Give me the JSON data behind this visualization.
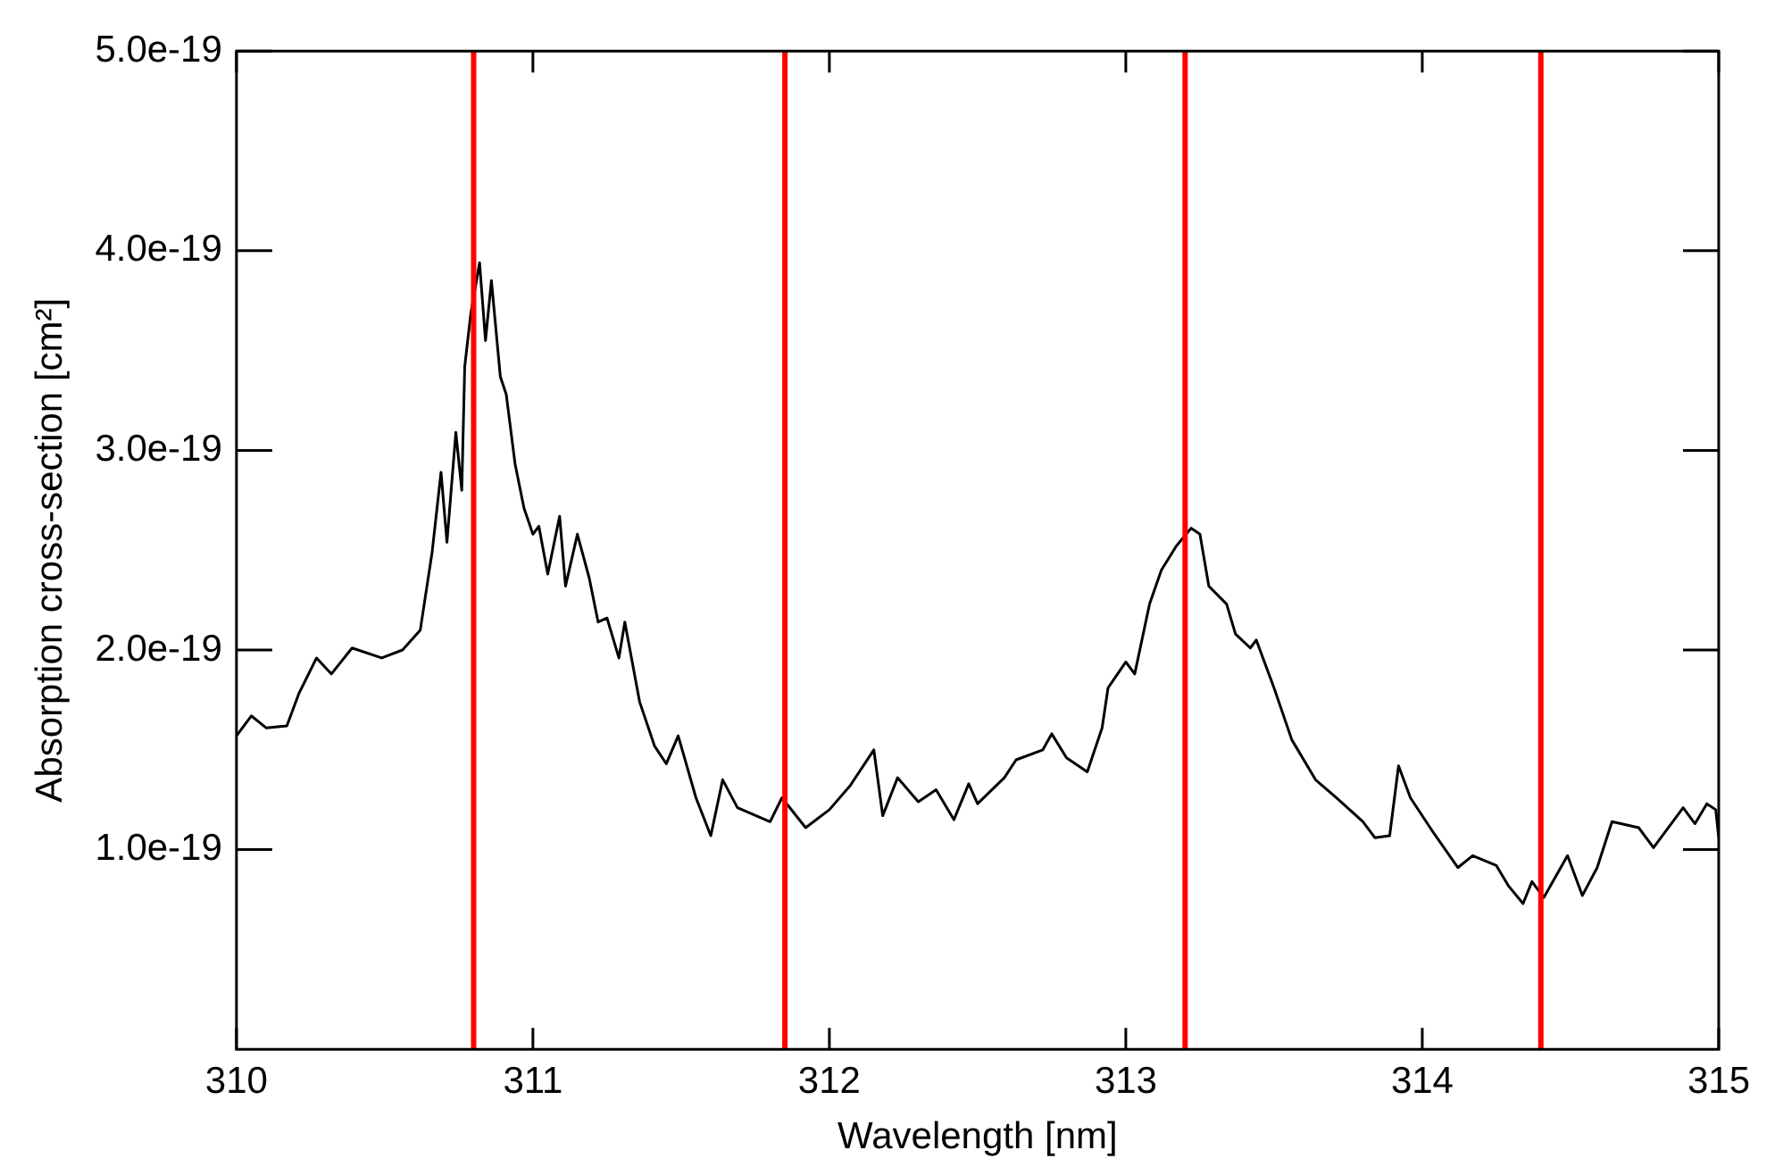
{
  "chart_data": {
    "type": "line",
    "xlabel": "Wavelength [nm]",
    "ylabel": "Absorption cross-section [cm²]",
    "xlim": [
      310,
      315
    ],
    "xticks": [
      310,
      311,
      312,
      313,
      314,
      315
    ],
    "ylim": [
      0,
      5e-19
    ],
    "yticks": [
      {
        "value": 1e-19,
        "label": "1.0e-19"
      },
      {
        "value": 2e-19,
        "label": "2.0e-19"
      },
      {
        "value": 3e-19,
        "label": "3.0e-19"
      },
      {
        "value": 4e-19,
        "label": "4.0e-19"
      },
      {
        "value": 5e-19,
        "label": "5.0e-19"
      }
    ],
    "grid": false,
    "legend": false,
    "marker": "none",
    "line_style": "solid",
    "series": [
      {
        "color": "#000000",
        "x": [
          310.0,
          310.05,
          310.1,
          310.17,
          310.21,
          310.27,
          310.32,
          310.39,
          310.49,
          310.56,
          310.62,
          310.66,
          310.69,
          310.71,
          310.74,
          310.76,
          310.77,
          310.79,
          310.82,
          310.84,
          310.86,
          310.89,
          310.91,
          310.94,
          310.97,
          311.0,
          311.02,
          311.05,
          311.09,
          311.11,
          311.15,
          311.19,
          311.22,
          311.25,
          311.29,
          311.31,
          311.36,
          311.41,
          311.45,
          311.49,
          311.55,
          311.6,
          311.64,
          311.69,
          311.8,
          311.84,
          311.92,
          312.0,
          312.07,
          312.15,
          312.18,
          312.23,
          312.3,
          312.36,
          312.42,
          312.47,
          312.5,
          312.59,
          312.63,
          312.72,
          312.75,
          312.8,
          312.87,
          312.92,
          312.94,
          313.0,
          313.03,
          313.08,
          313.12,
          313.17,
          313.22,
          313.25,
          313.28,
          313.34,
          313.37,
          313.42,
          313.44,
          313.5,
          313.56,
          313.64,
          313.71,
          313.8,
          313.84,
          313.89,
          313.92,
          313.96,
          314.04,
          314.12,
          314.17,
          314.25,
          314.29,
          314.34,
          314.37,
          314.41,
          314.49,
          314.54,
          314.59,
          314.64,
          314.73,
          314.78,
          314.88,
          314.92,
          314.96,
          314.99,
          315.0
        ],
        "values": [
          1.57e-19,
          1.67e-19,
          1.61e-19,
          1.62e-19,
          1.78e-19,
          1.96e-19,
          1.88e-19,
          2.01e-19,
          1.96e-19,
          2e-19,
          2.1e-19,
          2.49e-19,
          2.89e-19,
          2.54e-19,
          3.09e-19,
          2.8e-19,
          3.42e-19,
          3.68e-19,
          3.94e-19,
          3.55e-19,
          3.85e-19,
          3.37e-19,
          3.28e-19,
          2.93e-19,
          2.71e-19,
          2.58e-19,
          2.62e-19,
          2.38e-19,
          2.67e-19,
          2.32e-19,
          2.58e-19,
          2.36e-19,
          2.14e-19,
          2.16e-19,
          1.96e-19,
          2.14e-19,
          1.74e-19,
          1.52e-19,
          1.43e-19,
          1.57e-19,
          1.26e-19,
          1.07e-19,
          1.35e-19,
          1.21e-19,
          1.14e-19,
          1.26e-19,
          1.11e-19,
          1.2e-19,
          1.32e-19,
          1.5e-19,
          1.17e-19,
          1.36e-19,
          1.24e-19,
          1.3e-19,
          1.15e-19,
          1.33e-19,
          1.23e-19,
          1.36e-19,
          1.45e-19,
          1.5e-19,
          1.58e-19,
          1.46e-19,
          1.39e-19,
          1.61e-19,
          1.81e-19,
          1.94e-19,
          1.88e-19,
          2.23e-19,
          2.4e-19,
          2.52e-19,
          2.61e-19,
          2.58e-19,
          2.32e-19,
          2.23e-19,
          2.08e-19,
          2.01e-19,
          2.05e-19,
          1.81e-19,
          1.55e-19,
          1.35e-19,
          1.26e-19,
          1.14e-19,
          1.06e-19,
          1.07e-19,
          1.42e-19,
          1.26e-19,
          1.08e-19,
          9.1e-20,
          9.7e-20,
          9.2e-20,
          8.2e-20,
          7.3e-20,
          8.4e-20,
          7.6e-20,
          9.7e-20,
          7.7e-20,
          9.1e-20,
          1.14e-19,
          1.11e-19,
          1.01e-19,
          1.21e-19,
          1.13e-19,
          1.23e-19,
          1.2e-19,
          1.06e-19
        ]
      }
    ],
    "ref_lines": [
      {
        "axis": "x",
        "value": 310.8,
        "color": "#ff0000"
      },
      {
        "axis": "x",
        "value": 311.85,
        "color": "#ff0000"
      },
      {
        "axis": "x",
        "value": 313.2,
        "color": "#ff0000"
      },
      {
        "axis": "x",
        "value": 314.4,
        "color": "#ff0000"
      }
    ]
  }
}
